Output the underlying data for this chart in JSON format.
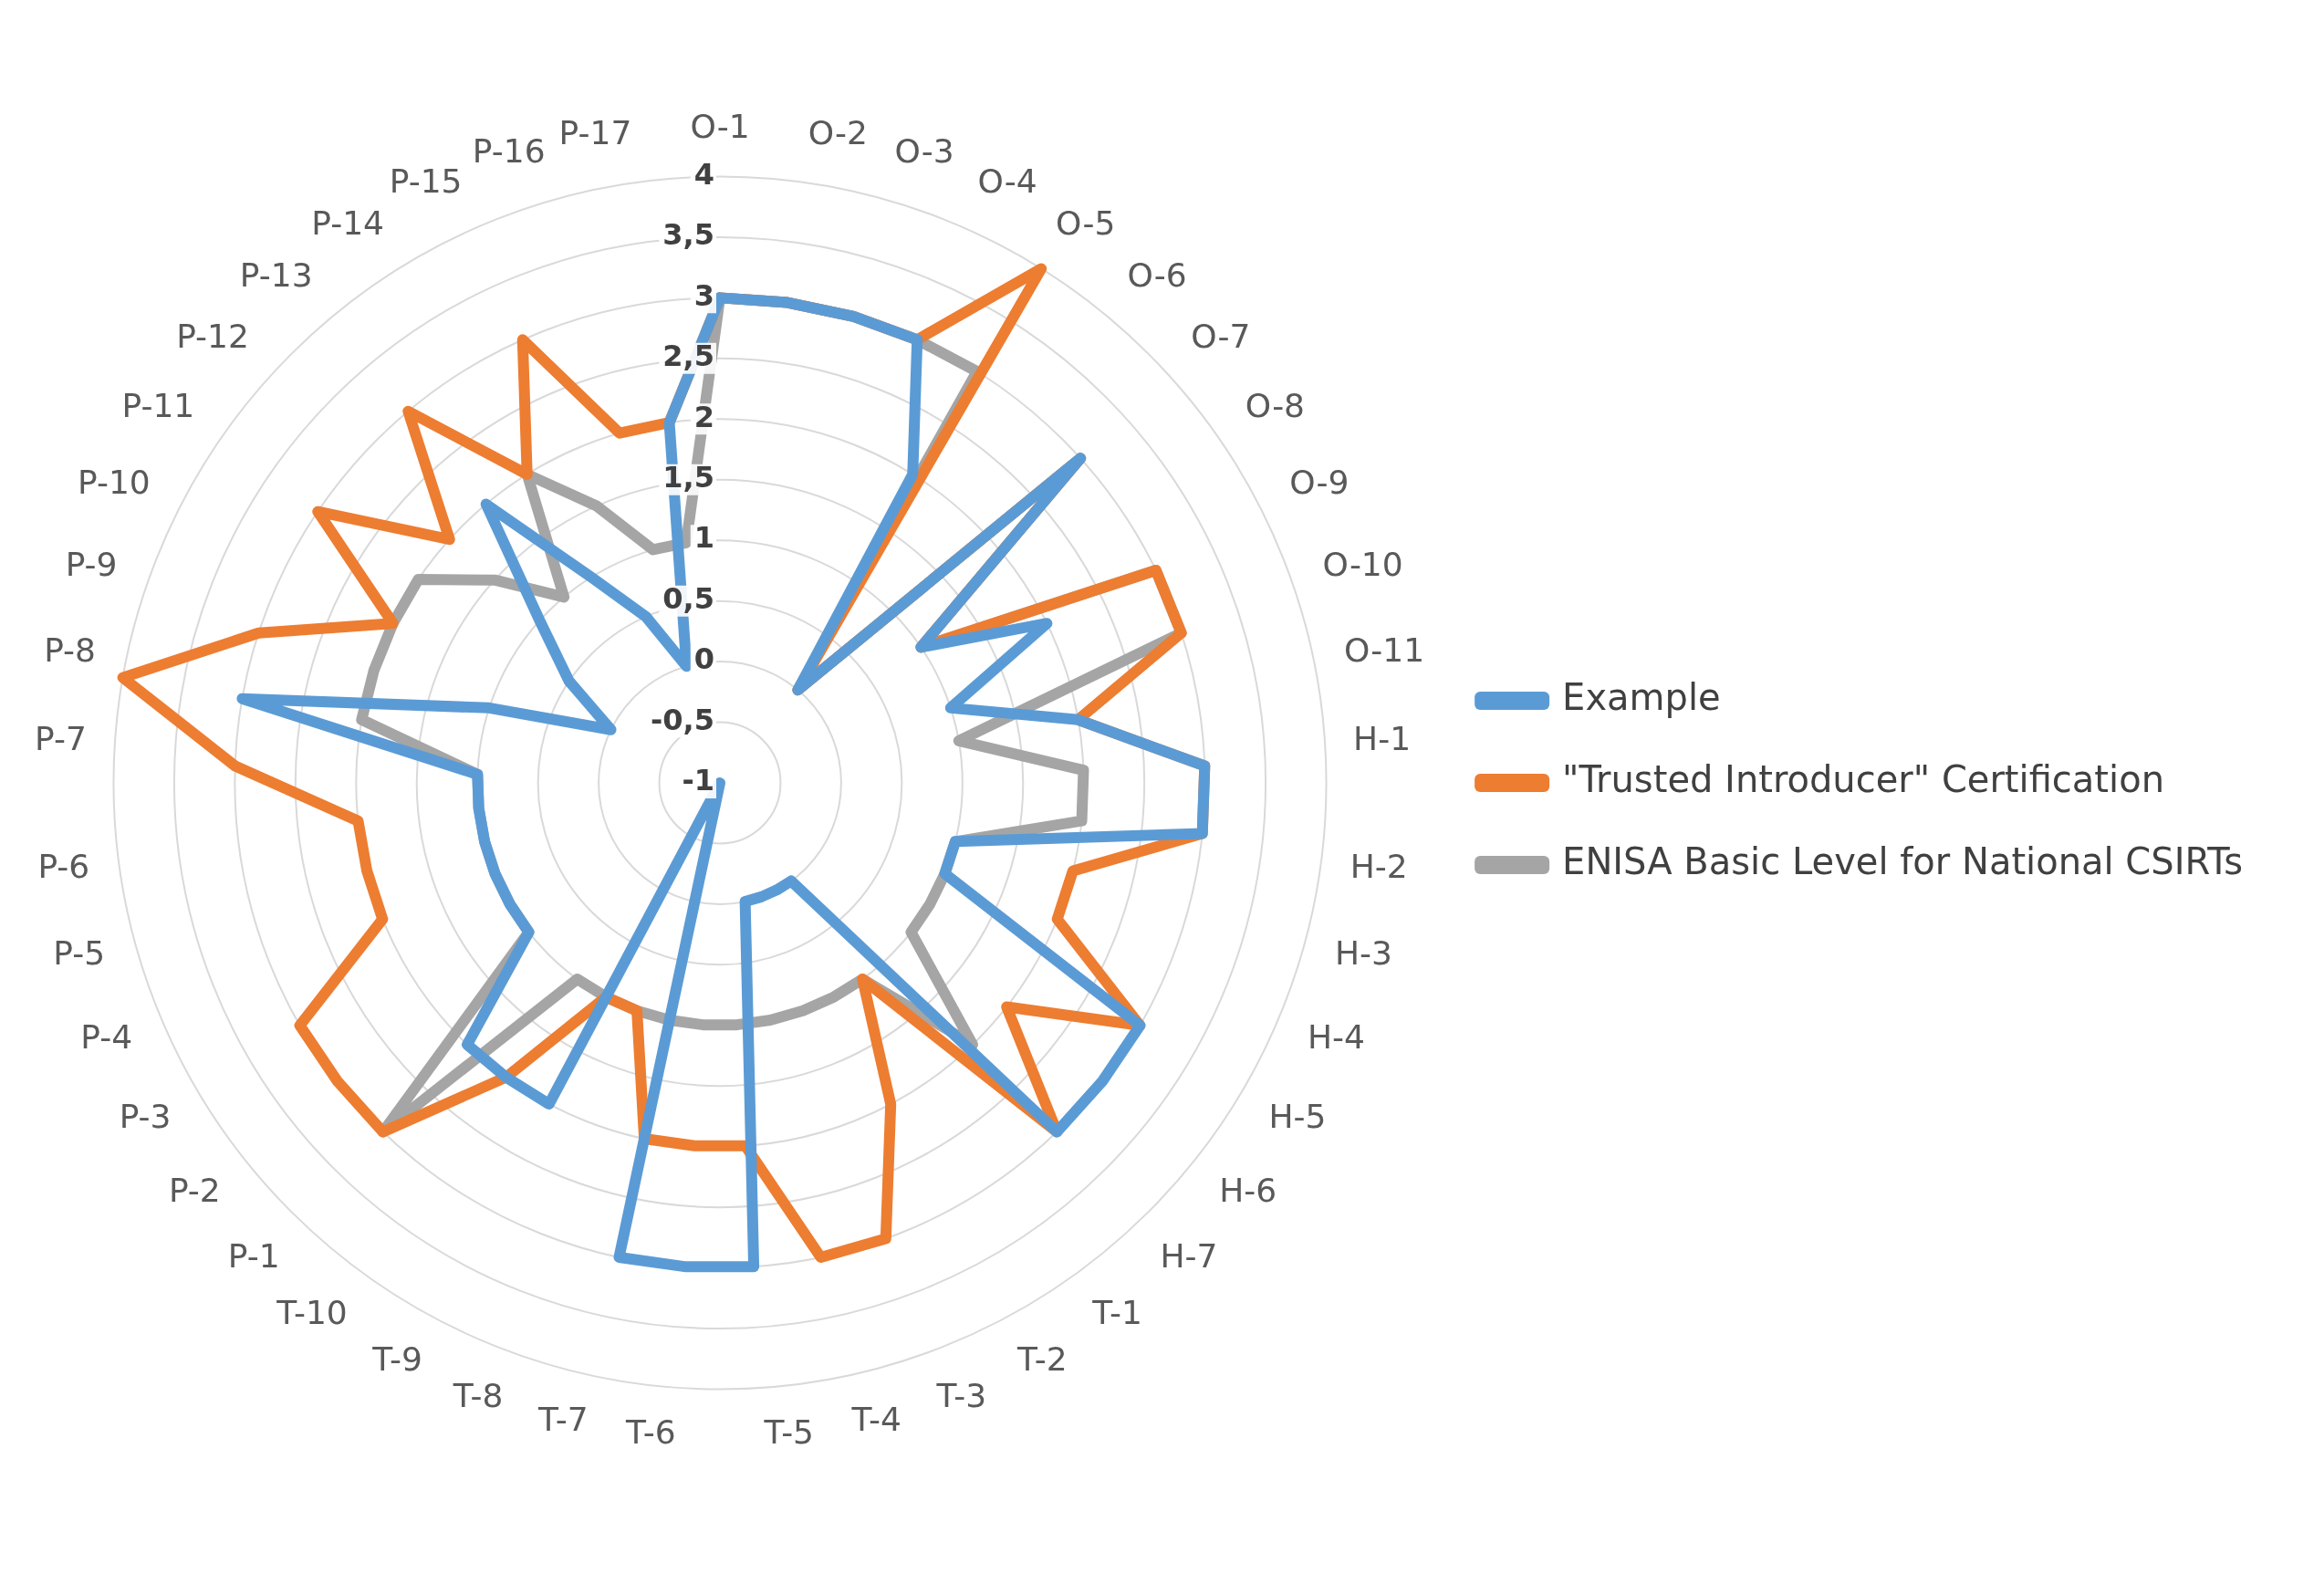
{
  "chart_data": {
    "type": "radar",
    "categories": [
      "O-1",
      "O-2",
      "O-3",
      "O-4",
      "O-5",
      "O-6",
      "O-7",
      "O-8",
      "O-9",
      "O-10",
      "O-11",
      "H-1",
      "H-2",
      "H-3",
      "H-4",
      "H-5",
      "H-6",
      "H-7",
      "T-1",
      "T-2",
      "T-3",
      "T-4",
      "T-5",
      "T-6",
      "T-7",
      "T-8",
      "T-9",
      "T-10",
      "P-1",
      "P-2",
      "P-3",
      "P-4",
      "P-5",
      "P-6",
      "P-7",
      "P-8",
      "P-9",
      "P-10",
      "P-11",
      "P-12",
      "P-13",
      "P-14",
      "P-15",
      "P-16",
      "P-17"
    ],
    "series": [
      {
        "name": "Example",
        "color": "#5b9bd5",
        "values": [
          3,
          3,
          3,
          3,
          2,
          0,
          3,
          1,
          2,
          1,
          2,
          3,
          3,
          1,
          1,
          3,
          3,
          3,
          0,
          0,
          0,
          0,
          3,
          3,
          3,
          -1,
          2,
          2,
          2,
          1,
          1,
          1,
          1,
          1,
          1,
          3,
          1,
          0,
          0.5,
          1,
          2,
          1,
          0.5,
          0,
          2
        ]
      },
      {
        "name": "\"Trusted Introducer\" Certification",
        "color": "#ed7d31",
        "values": [
          3,
          3,
          3,
          3,
          4,
          0,
          3,
          1,
          3,
          3,
          2,
          3,
          3,
          2,
          2,
          3,
          2,
          3,
          1,
          2,
          3,
          3,
          2,
          2,
          2,
          1,
          1,
          2,
          3,
          3,
          3,
          2,
          2,
          2,
          3,
          4,
          3,
          2,
          3,
          2,
          3,
          2,
          3,
          2,
          2
        ]
      },
      {
        "name": "ENISA Basic Level for National CSIRTs",
        "color": "#a5a5a5",
        "values": [
          3,
          3,
          3,
          3,
          3,
          0,
          3,
          1,
          3,
          3,
          1,
          2,
          2,
          1,
          1,
          1,
          1,
          2,
          1,
          1,
          1,
          1,
          1,
          1,
          1,
          1,
          1,
          1,
          3,
          1,
          1,
          1,
          1,
          1,
          1,
          2,
          2,
          2,
          2,
          1.5,
          1,
          2,
          1.5,
          1,
          1
        ]
      }
    ],
    "ylim": [
      -1,
      4
    ],
    "yticks": [
      -1,
      {
        "value": -0.5,
        "label": "-0,5"
      },
      0,
      {
        "value": 0.5,
        "label": "0,5"
      },
      1,
      {
        "value": 1.5,
        "label": "1,5"
      },
      2,
      {
        "value": 2.5,
        "label": "2,5"
      },
      3,
      {
        "value": 3.5,
        "label": "3,5"
      },
      4
    ],
    "grid": true,
    "legend": "right",
    "marker": "none",
    "line_style": "solid"
  }
}
